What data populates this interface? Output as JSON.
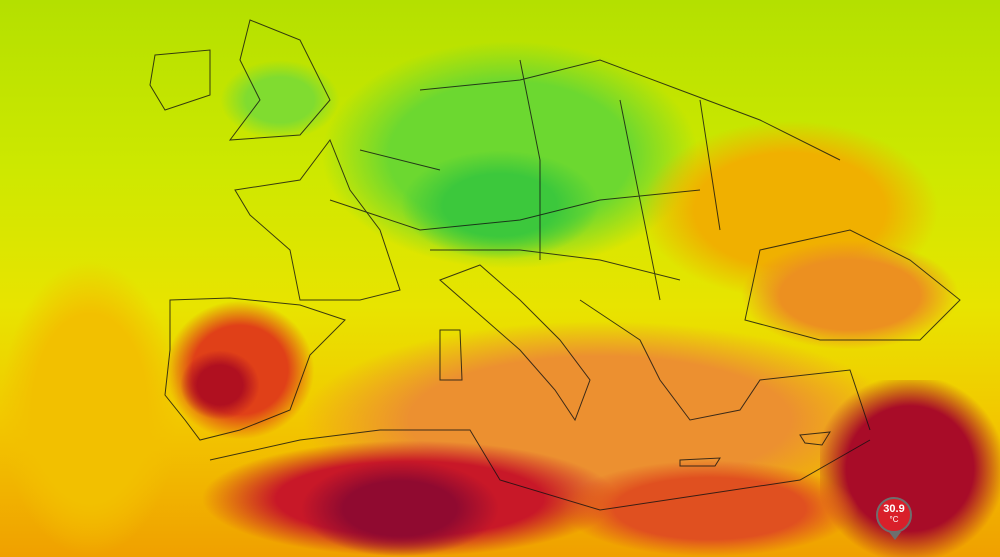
{
  "map": {
    "layer": "temperature",
    "colors": {
      "cool": "#4cd428",
      "mild": "#c8e800",
      "warm": "#f5e000",
      "hot": "#f09020",
      "very_hot": "#d02020",
      "extreme": "#8a0830"
    },
    "marker": {
      "value": "30.9",
      "unit": "°C",
      "color": "#d91f2a"
    }
  }
}
